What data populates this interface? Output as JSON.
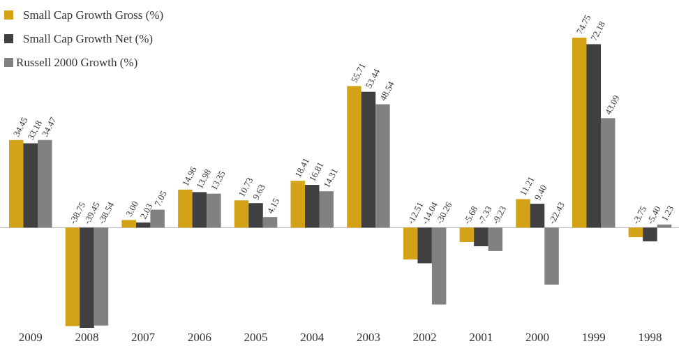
{
  "chart_data": {
    "type": "bar",
    "categories": [
      "2009",
      "2008",
      "2007",
      "2006",
      "2005",
      "2004",
      "2003",
      "2002",
      "2001",
      "2000",
      "1999",
      "1998"
    ],
    "series": [
      {
        "name": "Small Cap Growth Gross (%)",
        "color": "#d4a217",
        "values": [
          34.45,
          -38.75,
          3.0,
          14.96,
          10.73,
          18.41,
          55.71,
          -12.51,
          -5.68,
          11.21,
          74.75,
          -3.75
        ],
        "value_labels": [
          "34.45",
          "-38.75",
          "3.00",
          "14.96",
          "10.73",
          "18.41",
          "55.71",
          "-12.51",
          "-5.68",
          "11.21",
          "74.75",
          "-3.75"
        ]
      },
      {
        "name": "Small Cap Growth Net (%)",
        "color": "#404042",
        "values": [
          33.18,
          -39.45,
          2.03,
          13.98,
          9.63,
          16.81,
          53.44,
          -14.04,
          -7.33,
          9.4,
          72.18,
          -5.4
        ],
        "value_labels": [
          "33.18",
          "-39.45",
          "2.03",
          "13.98",
          "9.63",
          "16.81",
          "53.44",
          "-14.04",
          "-7.33",
          "9.40",
          "72.18",
          "-5.40"
        ]
      },
      {
        "name": "Russell 2000 Growth (%)",
        "color": "#818184",
        "values": [
          34.47,
          -38.54,
          7.05,
          13.35,
          4.15,
          14.31,
          48.54,
          -30.26,
          -9.23,
          -22.43,
          43.09,
          1.23
        ],
        "value_labels": [
          "34.47",
          "-38.54",
          "7.05",
          "13.35",
          "4.15",
          "14.31",
          "48.54",
          "-30.26",
          "-9.23",
          "-22.43",
          "43.09",
          "1.23"
        ]
      }
    ]
  }
}
